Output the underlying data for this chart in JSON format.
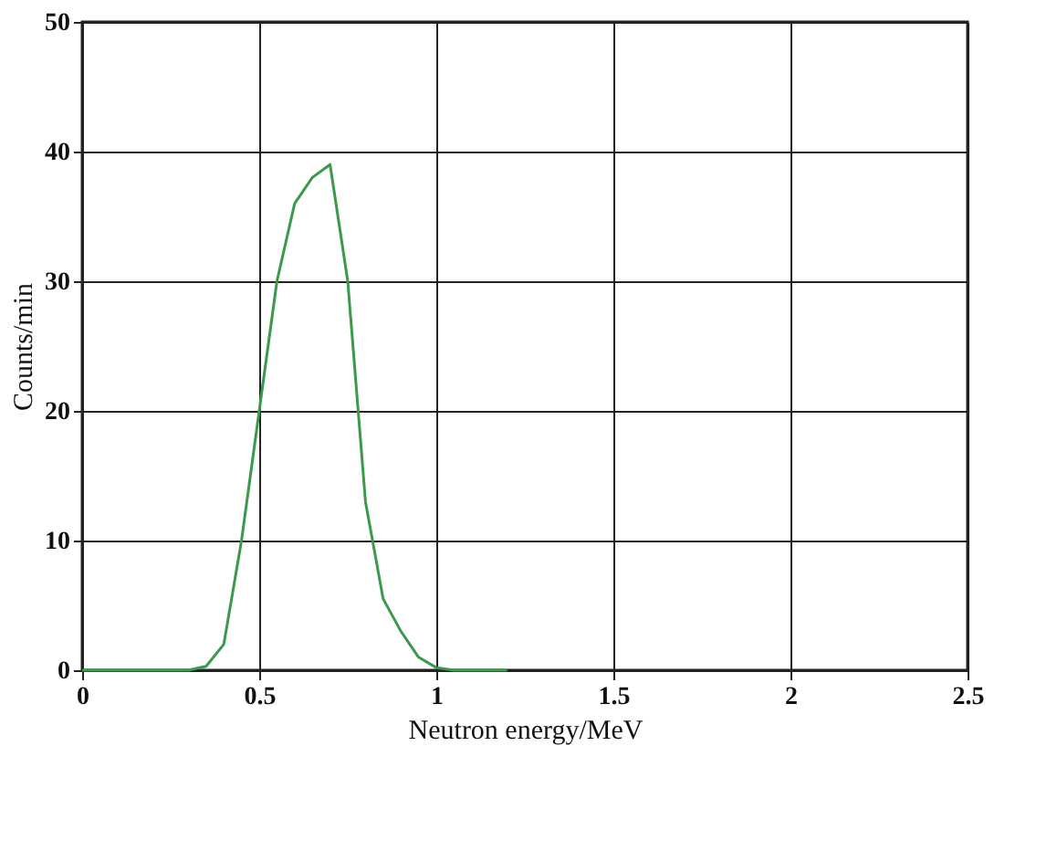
{
  "chart_data": {
    "type": "line",
    "xlabel": "Neutron energy/MeV",
    "ylabel": "Counts/min",
    "x": [
      0,
      0.3,
      0.35,
      0.4,
      0.45,
      0.5,
      0.55,
      0.6,
      0.65,
      0.7,
      0.75,
      0.8,
      0.85,
      0.9,
      0.95,
      1.0,
      1.05,
      1.1,
      1.2
    ],
    "series": [
      {
        "color": "#3a9a4a",
        "values": [
          0,
          0,
          0.3,
          2,
          10,
          20,
          30,
          36,
          38,
          39,
          30,
          13,
          5.5,
          3,
          1,
          0.2,
          0,
          0,
          0
        ]
      }
    ],
    "xlim": [
      0,
      2.5
    ],
    "xticks": [
      0,
      0.5,
      1,
      1.5,
      2,
      2.5
    ],
    "ylim": [
      0,
      50
    ],
    "yticks": [
      0,
      10,
      20,
      30,
      40,
      50
    ],
    "grid": true,
    "marker": "none",
    "line_style": "solid"
  }
}
